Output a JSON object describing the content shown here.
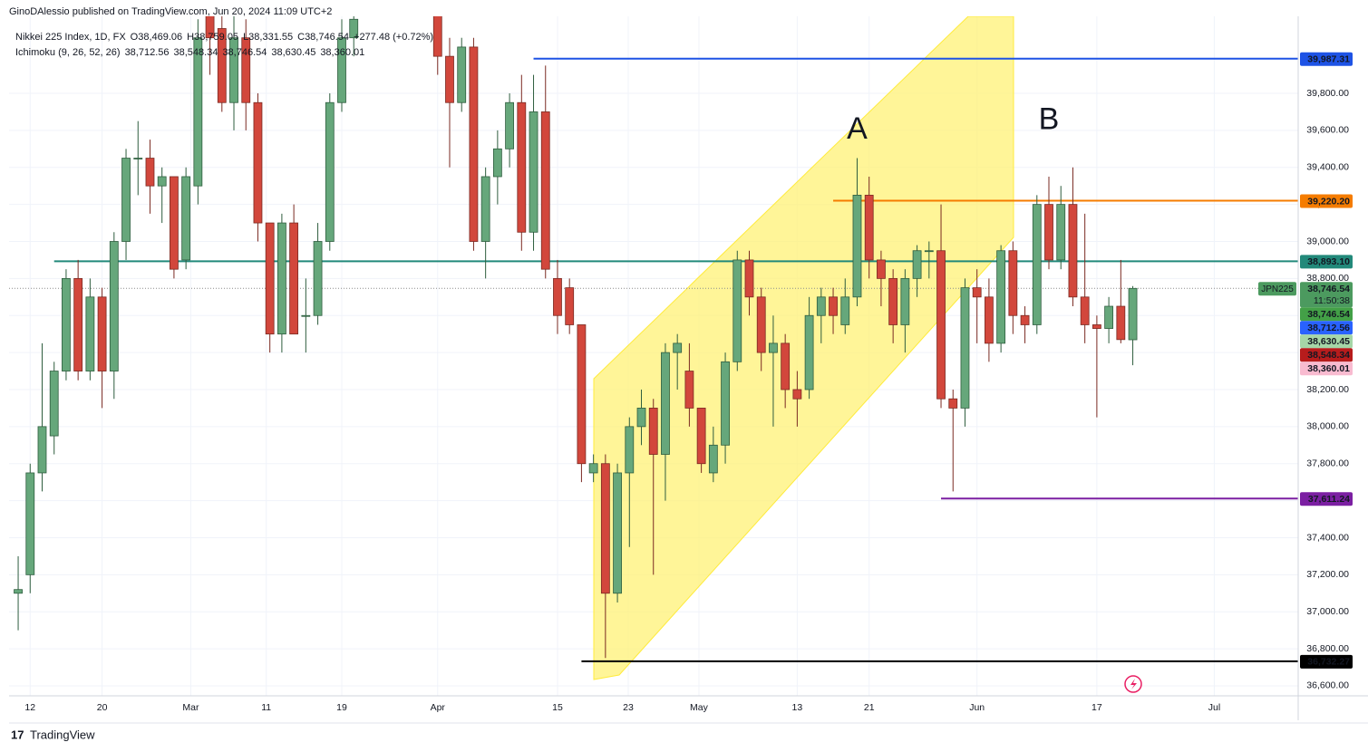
{
  "header": {
    "publisher": "GinoDAlessio published on TradingView.com, Jun 20, 2024 11:09 UTC+2",
    "footer": "TradingView"
  },
  "chart_data": {
    "type": "candlestick",
    "legend": [
      {
        "name": "Nikkei 225 Index, 1D, FX",
        "parts": [
          "O38,469.06",
          "H38,759.05",
          "L38,331.55",
          "C38,746.54",
          "+277.48 (+0.72%)"
        ],
        "color": "#131722"
      },
      {
        "name": "Ichimoku (9, 26, 52, 26)",
        "parts": [
          "38,712.56",
          "38,548.34",
          "38,746.54",
          "38,630.45",
          "38,360.01"
        ],
        "colors": [
          "#2962ff",
          "#b71c1c",
          "#43a047",
          "#81c784",
          "#ef9a9a"
        ]
      }
    ],
    "up_color": "#66a77b",
    "down_color": "#d2473c",
    "x": [
      0,
      1,
      2,
      3,
      4,
      5,
      6,
      7,
      8,
      9,
      10,
      11,
      12,
      13,
      14,
      15,
      16,
      17,
      18,
      19,
      20,
      21,
      22,
      23,
      24,
      25,
      26,
      27,
      28,
      35,
      36,
      37,
      38,
      39,
      40,
      41,
      42,
      43,
      44,
      45,
      46,
      47,
      48,
      49,
      50,
      51,
      52,
      53,
      54,
      55,
      56,
      57,
      58,
      59,
      60,
      61,
      62,
      63,
      64,
      65,
      66,
      67,
      68,
      69,
      70,
      71,
      72,
      73,
      74,
      75,
      76,
      77,
      78,
      79,
      80,
      81,
      82,
      83,
      84,
      85,
      86,
      87,
      88,
      89,
      90,
      91,
      92,
      93
    ],
    "open": [
      37100,
      37200,
      37750,
      37950,
      38300,
      38800,
      38300,
      38700,
      38300,
      39000,
      39450,
      39450,
      39300,
      39350,
      38900,
      39300,
      40300,
      40150,
      39750,
      40100,
      39750,
      39100,
      38500,
      39100,
      38600,
      38600,
      39000,
      39750,
      40100,
      40400,
      40000,
      39750,
      40050,
      39000,
      39350,
      39500,
      39750,
      39050,
      39700,
      38800,
      38750,
      38550,
      37750,
      37800,
      37100,
      37750,
      38000,
      38100,
      37850,
      38400,
      38300,
      38100,
      37750,
      37900,
      38350,
      38900,
      38700,
      38400,
      38450,
      38200,
      38200,
      38600,
      38700,
      38550,
      38700,
      39250,
      38900,
      38800,
      38550,
      38800,
      38950,
      38950,
      38150,
      38100,
      38750,
      38700,
      38450,
      38950,
      38600,
      38550,
      39200,
      38900,
      39200,
      38700,
      38550,
      38530,
      38650,
      38469.06
    ],
    "high": [
      37300,
      37800,
      38450,
      38350,
      38850,
      38900,
      38800,
      38750,
      39050,
      39500,
      39650,
      39550,
      39400,
      39350,
      39400,
      40200,
      40400,
      40250,
      40300,
      40200,
      39800,
      39100,
      39150,
      39200,
      38800,
      39100,
      39800,
      40200,
      40300,
      40500,
      40100,
      40100,
      40100,
      39400,
      39600,
      39800,
      39900,
      39900,
      39950,
      38900,
      38800,
      38550,
      37850,
      37850,
      37800,
      38050,
      38200,
      38150,
      38450,
      38500,
      38450,
      38100,
      38000,
      38400,
      38950,
      38950,
      38750,
      38600,
      38500,
      38300,
      38700,
      38750,
      38750,
      38800,
      39450,
      39350,
      38950,
      38850,
      38850,
      38980,
      39000,
      39200,
      38200,
      38800,
      38850,
      38800,
      38980,
      39000,
      38650,
      39250,
      39350,
      39300,
      39400,
      39150,
      38600,
      38700,
      38900,
      38759.05
    ],
    "low": [
      36900,
      37100,
      37650,
      37850,
      38250,
      38250,
      38250,
      38100,
      38150,
      38900,
      39250,
      39150,
      39100,
      38800,
      38850,
      39200,
      39900,
      39700,
      39600,
      39600,
      39000,
      38400,
      38400,
      38500,
      38400,
      38550,
      38950,
      39700,
      40000,
      39900,
      39400,
      39700,
      38950,
      38800,
      39200,
      39400,
      38950,
      38950,
      38800,
      38500,
      38500,
      37700,
      37700,
      36750,
      37050,
      37350,
      37900,
      37200,
      37600,
      38200,
      38000,
      37750,
      37700,
      37800,
      38300,
      38600,
      38300,
      38000,
      38100,
      38000,
      38150,
      38450,
      38500,
      38500,
      38650,
      38800,
      38650,
      38450,
      38400,
      38700,
      38800,
      38100,
      37650,
      38000,
      38450,
      38350,
      38400,
      38500,
      38450,
      38500,
      38850,
      38850,
      38650,
      38450,
      38050,
      38450,
      38450,
      38331.55
    ],
    "close": [
      37120,
      37750,
      38000,
      38300,
      38800,
      38300,
      38700,
      38300,
      39000,
      39450,
      39450,
      39300,
      39350,
      38850,
      39350,
      40100,
      40100,
      39750,
      40100,
      39750,
      39100,
      38500,
      39100,
      38500,
      38600,
      39000,
      39750,
      40100,
      40200,
      40000,
      39750,
      40050,
      39000,
      39350,
      39500,
      39750,
      39050,
      39700,
      38850,
      38600,
      38550,
      37800,
      37800,
      37100,
      37750,
      38000,
      38100,
      37850,
      38400,
      38450,
      38100,
      37800,
      37900,
      38350,
      38900,
      38700,
      38400,
      38450,
      38200,
      38150,
      38600,
      38700,
      38600,
      38700,
      39250,
      38900,
      38800,
      38550,
      38800,
      38950,
      38950,
      38150,
      38100,
      38750,
      38700,
      38450,
      38950,
      38600,
      38550,
      39200,
      38900,
      39200,
      38700,
      38550,
      38530,
      38650,
      38470,
      38746.54
    ],
    "xlim": [
      -0.76,
      106.8
    ],
    "xticks": [
      {
        "value": 1,
        "label": "12"
      },
      {
        "value": 7,
        "label": "20"
      },
      {
        "value": 14.4,
        "label": "Mar"
      },
      {
        "value": 20.7,
        "label": "11"
      },
      {
        "value": 27,
        "label": "19"
      },
      {
        "value": 35,
        "label": "Apr"
      },
      {
        "value": 45,
        "label": "15"
      },
      {
        "value": 50.9,
        "label": "23"
      },
      {
        "value": 56.8,
        "label": "May"
      },
      {
        "value": 65,
        "label": "13"
      },
      {
        "value": 71,
        "label": "21"
      },
      {
        "value": 80,
        "label": "Jun"
      },
      {
        "value": 90,
        "label": "17"
      },
      {
        "value": 99.8,
        "label": "Jul"
      }
    ],
    "ylim": [
      36546,
      40216
    ],
    "yticks": [
      {
        "value": 36600,
        "label": "36,600.00"
      },
      {
        "value": 36800,
        "label": "36,800.00"
      },
      {
        "value": 37000,
        "label": "37,000.00"
      },
      {
        "value": 37200,
        "label": "37,200.00"
      },
      {
        "value": 37400,
        "label": "37,400.00"
      },
      {
        "value": 37600,
        "label": "37,600.00"
      },
      {
        "value": 37800,
        "label": "37,800.00"
      },
      {
        "value": 38000,
        "label": "38,000.00"
      },
      {
        "value": 38200,
        "label": "38,200.00"
      },
      {
        "value": 38400,
        "label": "38,400.00"
      },
      {
        "value": 38600,
        "label": "38,600.00"
      },
      {
        "value": 38800,
        "label": "38,800.00"
      },
      {
        "value": 39000,
        "label": "39,000.00"
      },
      {
        "value": 39200,
        "label": "39,200.00"
      },
      {
        "value": 39400,
        "label": "39,400.00"
      },
      {
        "value": 39600,
        "label": "39,600.00"
      },
      {
        "value": 39800,
        "label": "39,800.00"
      }
    ],
    "levels": [
      {
        "value": 39987.31,
        "label": "39,987.31",
        "color": "#1e53e5",
        "start": 43
      },
      {
        "value": 39220.2,
        "label": "39,220.20",
        "color": "#f57c00",
        "start": 68
      },
      {
        "value": 38893.1,
        "label": "38,893.10",
        "color": "#22897a",
        "start": 3
      },
      {
        "value": 37611.24,
        "label": "37,611.24",
        "color": "#7b1fa2",
        "start": 77
      },
      {
        "value": 36732.27,
        "label": "36,732.27",
        "color": "#000000",
        "start": 47
      }
    ],
    "last_price": {
      "value": 38746.54,
      "label": "38,746.54",
      "symbol": "JPN225",
      "countdown": "11:50:38",
      "color": "#4c9a5f"
    },
    "indicator_tags": [
      {
        "value": 38746.54,
        "label": "38,746.54",
        "color": "#43a047",
        "text_color": "#ffffff"
      },
      {
        "value": 38712.56,
        "label": "38,712.56",
        "color": "#2962ff",
        "text_color": "#ffffff"
      },
      {
        "value": 38630.45,
        "label": "38,630.45",
        "color": "#a5d6a7",
        "text_color": "#131722"
      },
      {
        "value": 38548.34,
        "label": "38,548.34",
        "color": "#b71c1c",
        "text_color": "#ffffff"
      },
      {
        "value": 38360.01,
        "label": "38,360.01",
        "color": "#f8bbd0",
        "text_color": "#131722"
      }
    ],
    "annotations": [
      {
        "text": "A",
        "x": 70,
        "value": 39600
      },
      {
        "text": "B",
        "x": 86,
        "value": 39650
      }
    ]
  }
}
